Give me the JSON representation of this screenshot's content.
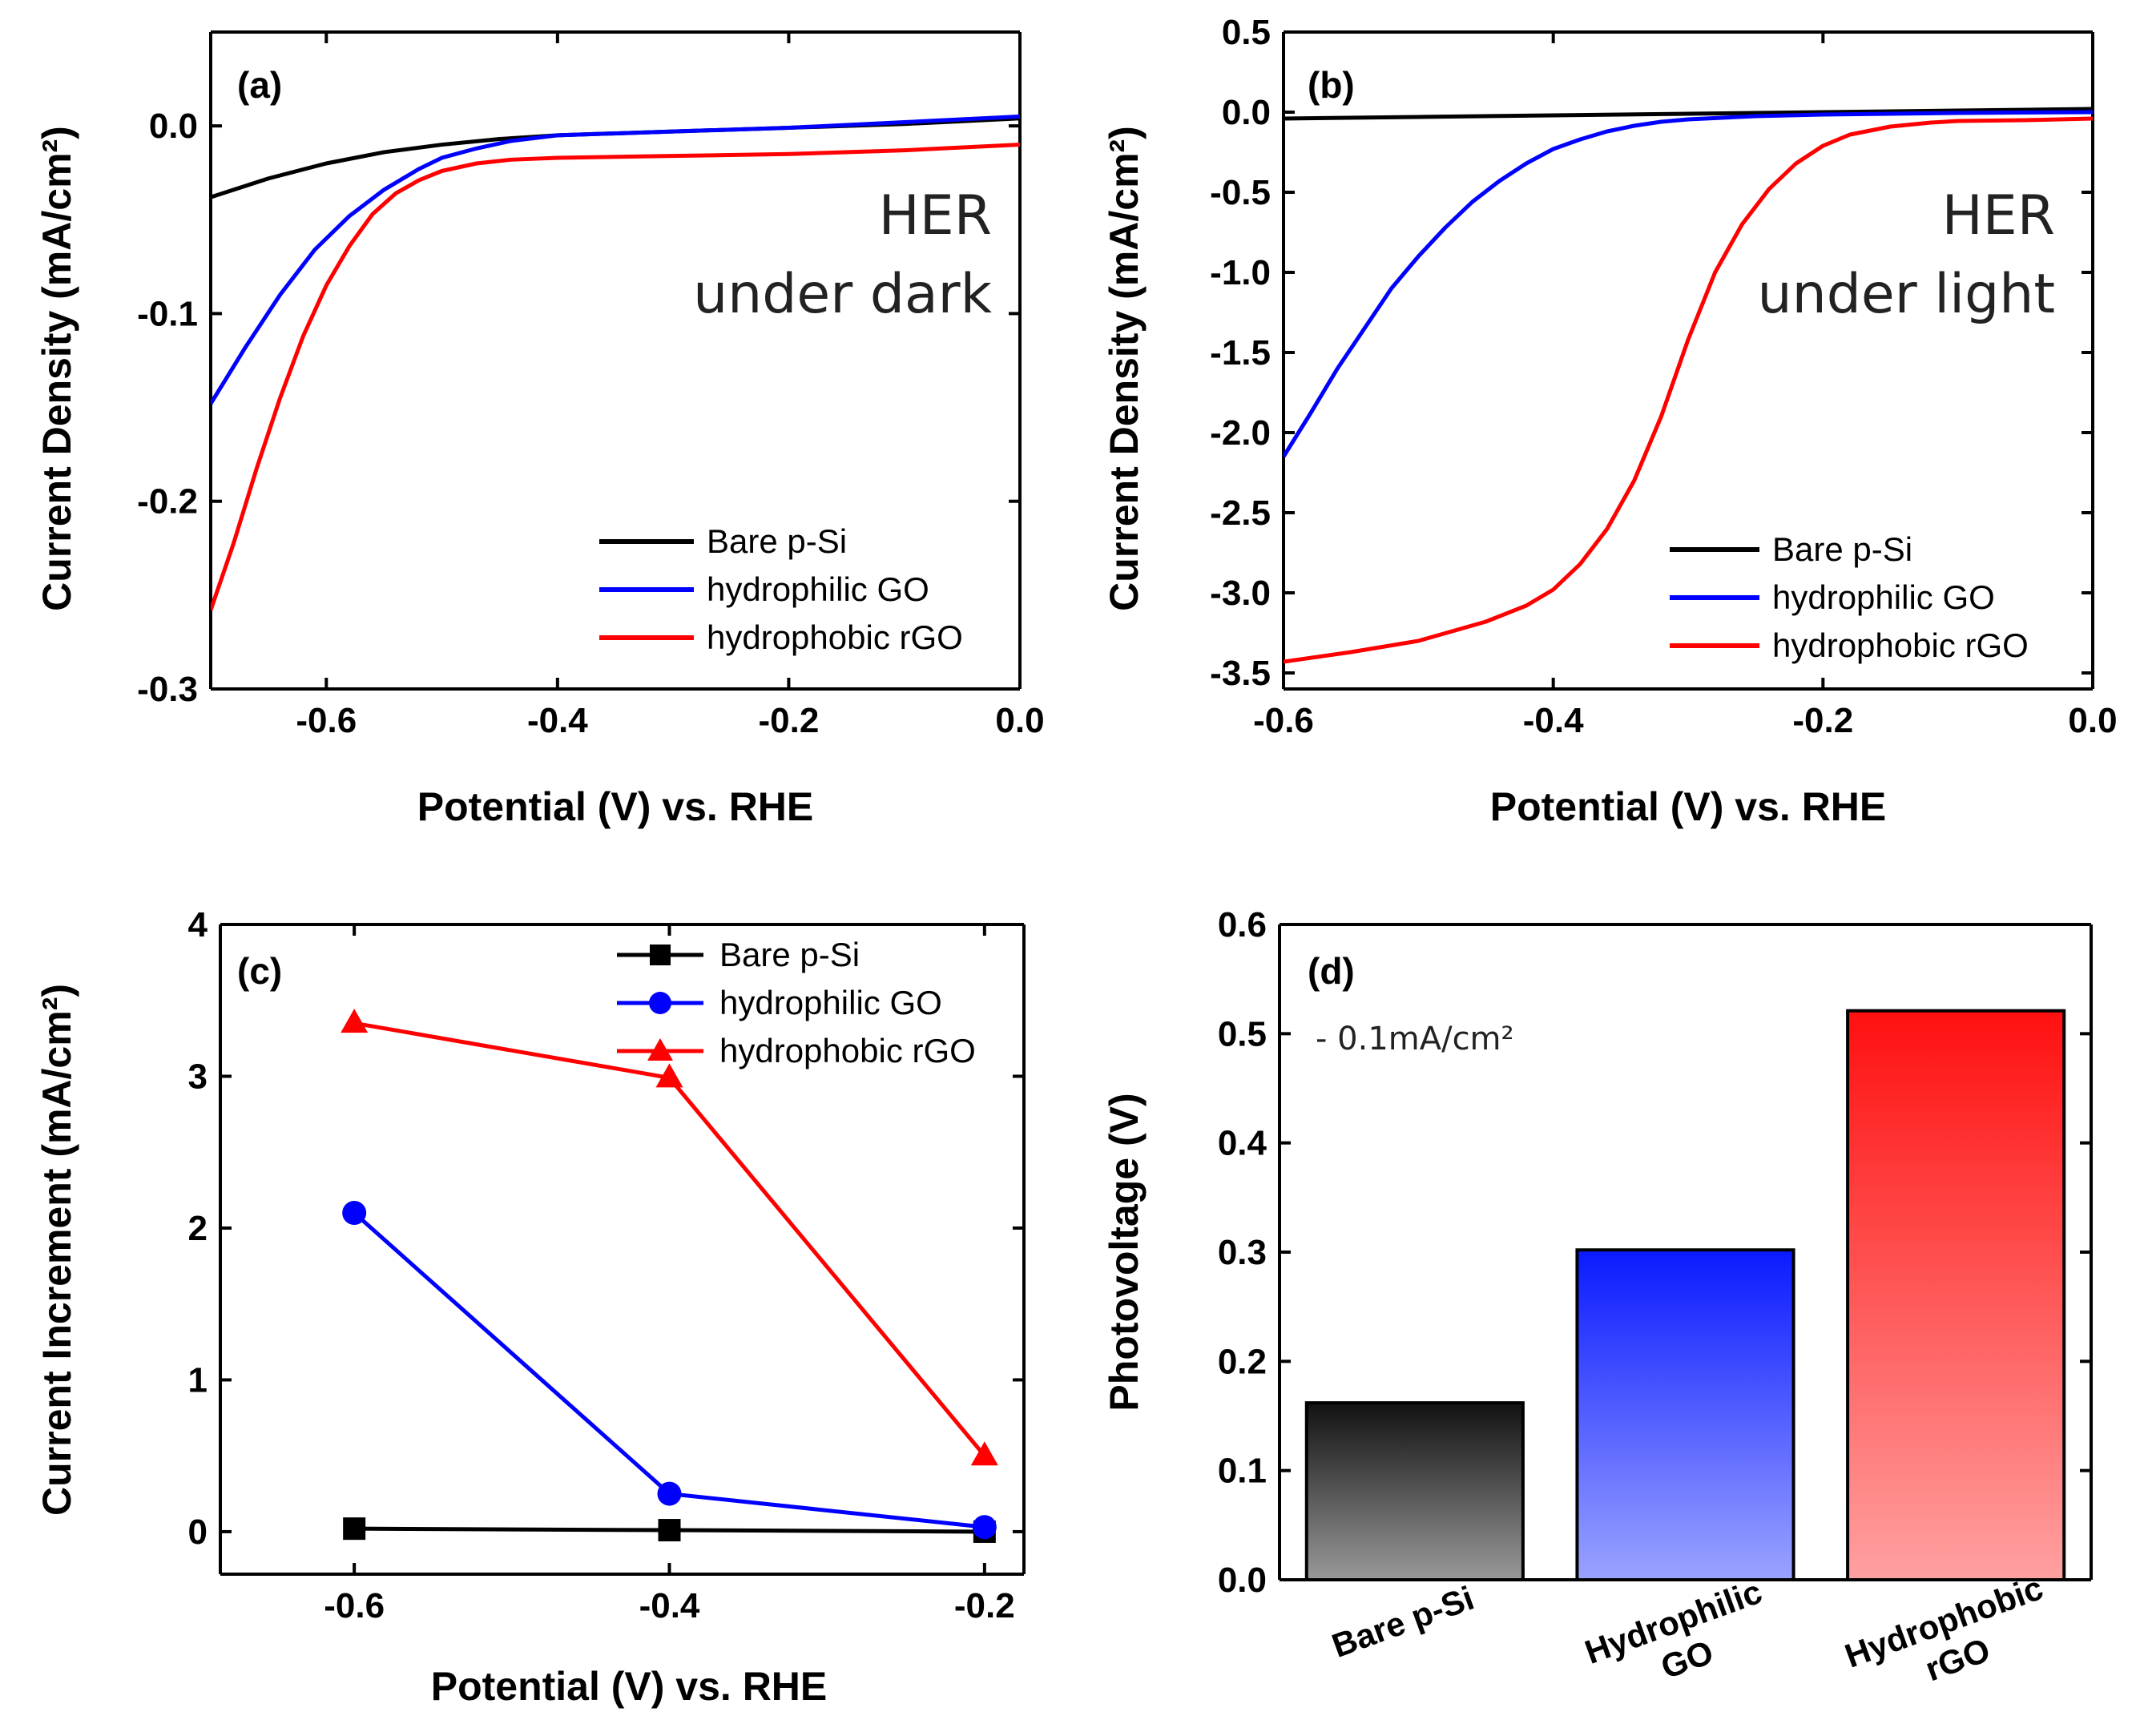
{
  "chart_data": [
    {
      "panel": "(a)",
      "type": "line",
      "title": "",
      "annotation": [
        "HER",
        "under dark"
      ],
      "xlabel": "Potential (V) vs. RHE",
      "ylabel": "Current Density (mA/cm²)",
      "xlim": [
        -0.7,
        0.0
      ],
      "ylim": [
        -0.3,
        0.05
      ],
      "xticks": [
        -0.6,
        -0.4,
        -0.2,
        0.0
      ],
      "xtick_labels": [
        "-0.6",
        "-0.4",
        "-0.2",
        "0.0"
      ],
      "yticks": [
        -0.3,
        -0.2,
        -0.1,
        0.0
      ],
      "ytick_labels": [
        "-0.3",
        "-0.2",
        "-0.1",
        "0.0"
      ],
      "legend_position": "bottom-right",
      "series": [
        {
          "name": "Bare p-Si",
          "color": "#000000",
          "x": [
            -0.7,
            -0.65,
            -0.6,
            -0.55,
            -0.5,
            -0.45,
            -0.4,
            -0.3,
            -0.2,
            -0.1,
            0.0
          ],
          "y": [
            -0.038,
            -0.028,
            -0.02,
            -0.014,
            -0.01,
            -0.007,
            -0.005,
            -0.003,
            -0.001,
            0.001,
            0.004
          ]
        },
        {
          "name": "hydrophilic GO",
          "color": "#0000ff",
          "x": [
            -0.7,
            -0.67,
            -0.64,
            -0.61,
            -0.58,
            -0.55,
            -0.52,
            -0.5,
            -0.47,
            -0.44,
            -0.4,
            -0.3,
            -0.2,
            -0.1,
            0.0
          ],
          "y": [
            -0.148,
            -0.118,
            -0.09,
            -0.066,
            -0.048,
            -0.034,
            -0.023,
            -0.017,
            -0.012,
            -0.008,
            -0.005,
            -0.003,
            -0.001,
            0.002,
            0.005
          ]
        },
        {
          "name": "hydrophobic rGO",
          "color": "#ff0000",
          "x": [
            -0.7,
            -0.68,
            -0.66,
            -0.64,
            -0.62,
            -0.6,
            -0.58,
            -0.56,
            -0.54,
            -0.52,
            -0.5,
            -0.47,
            -0.44,
            -0.4,
            -0.3,
            -0.2,
            -0.1,
            0.0
          ],
          "y": [
            -0.258,
            -0.222,
            -0.182,
            -0.145,
            -0.112,
            -0.085,
            -0.064,
            -0.047,
            -0.036,
            -0.029,
            -0.024,
            -0.02,
            -0.018,
            -0.017,
            -0.016,
            -0.015,
            -0.013,
            -0.01
          ]
        }
      ]
    },
    {
      "panel": "(b)",
      "type": "line",
      "title": "",
      "annotation": [
        "HER",
        "under light"
      ],
      "xlabel": "Potential (V) vs. RHE",
      "ylabel": "Current Density (mA/cm²)",
      "xlim": [
        -0.6,
        0.0
      ],
      "ylim": [
        -3.6,
        0.5
      ],
      "xticks": [
        -0.6,
        -0.4,
        -0.2,
        0.0
      ],
      "xtick_labels": [
        "-0.6",
        "-0.4",
        "-0.2",
        "0.0"
      ],
      "yticks": [
        -3.5,
        -3.0,
        -2.5,
        -2.0,
        -1.5,
        -1.0,
        -0.5,
        0.0,
        0.5
      ],
      "ytick_labels": [
        "-3.5",
        "-3.0",
        "-2.5",
        "-2.0",
        "-1.5",
        "-1.0",
        "-0.5",
        "0.0",
        "0.5"
      ],
      "legend_position": "bottom-right",
      "series": [
        {
          "name": "Bare p-Si",
          "color": "#000000",
          "x": [
            -0.6,
            -0.5,
            -0.4,
            -0.3,
            -0.2,
            -0.1,
            0.0
          ],
          "y": [
            -0.04,
            -0.03,
            -0.02,
            -0.01,
            0.0,
            0.01,
            0.02
          ]
        },
        {
          "name": "hydrophilic GO",
          "color": "#0000ff",
          "x": [
            -0.6,
            -0.58,
            -0.56,
            -0.54,
            -0.52,
            -0.5,
            -0.48,
            -0.46,
            -0.44,
            -0.42,
            -0.4,
            -0.38,
            -0.36,
            -0.34,
            -0.32,
            -0.3,
            -0.25,
            -0.2,
            -0.1,
            0.0
          ],
          "y": [
            -2.15,
            -1.88,
            -1.6,
            -1.35,
            -1.1,
            -0.9,
            -0.72,
            -0.56,
            -0.43,
            -0.32,
            -0.23,
            -0.17,
            -0.12,
            -0.085,
            -0.06,
            -0.045,
            -0.025,
            -0.015,
            -0.005,
            0.0
          ]
        },
        {
          "name": "hydrophobic rGO",
          "color": "#ff0000",
          "x": [
            -0.6,
            -0.55,
            -0.5,
            -0.45,
            -0.42,
            -0.4,
            -0.38,
            -0.36,
            -0.34,
            -0.32,
            -0.3,
            -0.28,
            -0.26,
            -0.24,
            -0.22,
            -0.2,
            -0.18,
            -0.15,
            -0.12,
            -0.1,
            -0.05,
            0.0
          ],
          "y": [
            -3.43,
            -3.37,
            -3.3,
            -3.18,
            -3.08,
            -2.98,
            -2.82,
            -2.6,
            -2.3,
            -1.9,
            -1.42,
            -1.0,
            -0.7,
            -0.48,
            -0.32,
            -0.21,
            -0.14,
            -0.09,
            -0.065,
            -0.055,
            -0.05,
            -0.04
          ]
        }
      ]
    },
    {
      "panel": "(c)",
      "type": "line",
      "title": "",
      "xlabel": "Potential (V) vs. RHE",
      "ylabel": "Current Increment (mA/cm²)",
      "xlim": [
        -0.685,
        -0.175
      ],
      "ylim": [
        -0.28,
        4.0
      ],
      "xticks": [
        -0.6,
        -0.4,
        -0.2
      ],
      "xtick_labels": [
        "-0.6",
        "-0.4",
        "-0.2"
      ],
      "yticks": [
        0,
        1,
        2,
        3,
        4
      ],
      "ytick_labels": [
        "0",
        "1",
        "2",
        "3",
        "4"
      ],
      "legend_position": "top-right",
      "series": [
        {
          "name": "Bare p-Si",
          "color": "#000000",
          "marker": "square",
          "x": [
            -0.6,
            -0.4,
            -0.2
          ],
          "y": [
            0.02,
            0.01,
            0.0
          ]
        },
        {
          "name": "hydrophilic GO",
          "color": "#0000ff",
          "marker": "circle",
          "x": [
            -0.6,
            -0.4,
            -0.2
          ],
          "y": [
            2.1,
            0.25,
            0.03
          ]
        },
        {
          "name": "hydrophobic rGO",
          "color": "#ff0000",
          "marker": "triangle",
          "x": [
            -0.6,
            -0.4,
            -0.2
          ],
          "y": [
            3.35,
            2.99,
            0.5
          ]
        }
      ]
    },
    {
      "panel": "(d)",
      "type": "bar",
      "title": "",
      "annotation": "- 0.1mA/cm²",
      "xlabel": "",
      "ylabel": "Photovoltage (V)",
      "ylim": [
        0.0,
        0.6
      ],
      "yticks": [
        0.0,
        0.1,
        0.2,
        0.3,
        0.4,
        0.5,
        0.6
      ],
      "ytick_labels": [
        "0.0",
        "0.1",
        "0.2",
        "0.3",
        "0.4",
        "0.5",
        "0.6"
      ],
      "categories": [
        [
          "Bare p-Si"
        ],
        [
          "Hydrophilic",
          "GO"
        ],
        [
          "Hydrophobic",
          "rGO"
        ]
      ],
      "values": [
        0.162,
        0.302,
        0.521
      ],
      "bar_colors": [
        [
          "#111111",
          "#999999"
        ],
        [
          "#0a1aff",
          "#9aa3ff"
        ],
        [
          "#ff1010",
          "#ffa0a0"
        ]
      ]
    }
  ]
}
